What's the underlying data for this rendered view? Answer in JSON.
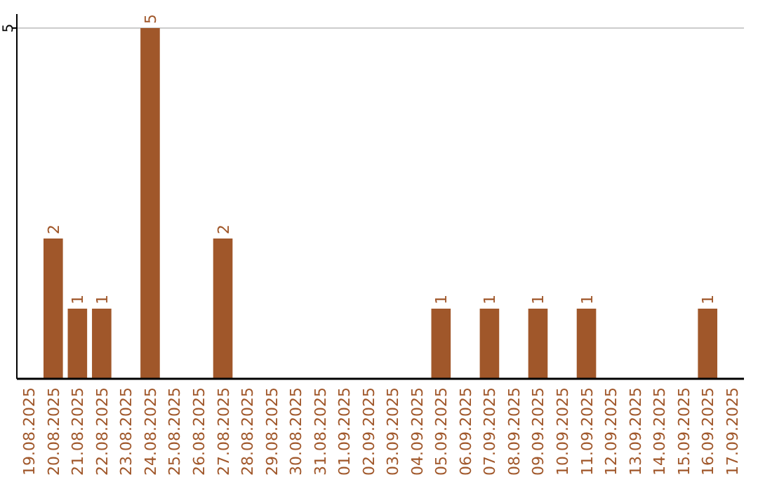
{
  "chart_data": {
    "type": "bar",
    "categories": [
      "19.08.2025",
      "20.08.2025",
      "21.08.2025",
      "22.08.2025",
      "23.08.2025",
      "24.08.2025",
      "25.08.2025",
      "26.08.2025",
      "27.08.2025",
      "28.08.2025",
      "29.08.2025",
      "30.08.2025",
      "31.08.2025",
      "01.09.2025",
      "02.09.2025",
      "03.09.2025",
      "04.09.2025",
      "05.09.2025",
      "06.09.2025",
      "07.09.2025",
      "08.09.2025",
      "09.09.2025",
      "10.09.2025",
      "11.09.2025",
      "12.09.2025",
      "13.09.2025",
      "14.09.2025",
      "15.09.2025",
      "16.09.2025",
      "17.09.2025"
    ],
    "values": [
      0,
      2,
      1,
      1,
      0,
      5,
      0,
      0,
      2,
      0,
      0,
      0,
      0,
      0,
      0,
      0,
      0,
      1,
      0,
      1,
      0,
      1,
      0,
      1,
      0,
      0,
      0,
      0,
      1,
      0
    ],
    "value_labels": [
      null,
      "2",
      "1",
      "1",
      null,
      "5",
      null,
      null,
      "2",
      null,
      null,
      null,
      null,
      null,
      null,
      null,
      null,
      "1",
      null,
      "1",
      null,
      "1",
      null,
      "1",
      null,
      null,
      null,
      null,
      "1",
      null
    ],
    "color": "#a0572a",
    "ylim": [
      0,
      5.2
    ],
    "yticks": [
      5
    ],
    "grid": "y"
  }
}
